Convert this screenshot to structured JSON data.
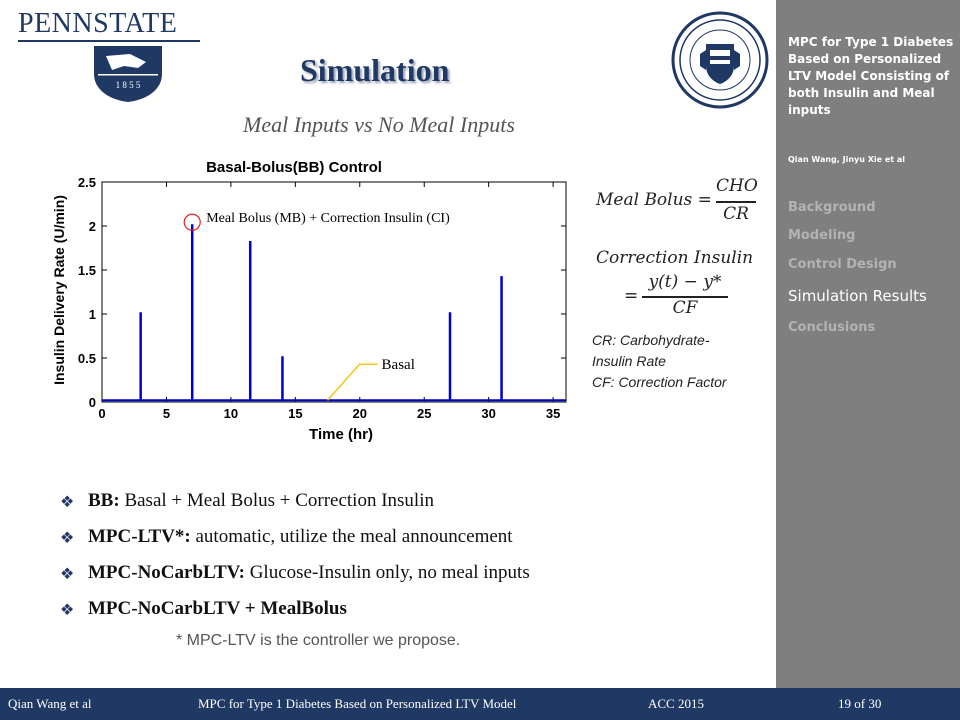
{
  "header": {
    "logo_text": "PENNSTATE",
    "logo_years": "1 8 5 5",
    "title": "Simulation",
    "subtitle": "Meal Inputs vs No Meal Inputs"
  },
  "chart_data": {
    "type": "line",
    "title": "Basal-Bolus(BB) Control",
    "xlabel": "Time (hr)",
    "ylabel": "Insulin Delivery Rate (U/min)",
    "xlim": [
      0,
      36
    ],
    "ylim": [
      0,
      2.5
    ],
    "x_ticks": [
      "0",
      "5",
      "10",
      "15",
      "20",
      "25",
      "30",
      "35"
    ],
    "y_ticks": [
      "0",
      "0.5",
      "1",
      "1.5",
      "2",
      "2.5"
    ],
    "basal_rate": 0.02,
    "spikes": [
      {
        "x": 3,
        "y": 1.02
      },
      {
        "x": 7,
        "y": 2.02
      },
      {
        "x": 11.5,
        "y": 1.83
      },
      {
        "x": 14,
        "y": 0.52
      },
      {
        "x": 27,
        "y": 1.02
      },
      {
        "x": 31,
        "y": 1.43
      }
    ],
    "series_color": "#0000cc",
    "annotations": {
      "bolus_label": "Meal Bolus (MB) + Correction Insulin (CI)",
      "basal_label": "Basal"
    }
  },
  "equations": {
    "meal_bolus_lhs": "Meal Bolus =",
    "meal_bolus_num": "CHO",
    "meal_bolus_den": "CR",
    "correction_title": "Correction Insulin",
    "correction_eq": "=",
    "correction_num": "y(t) − y*",
    "correction_den": "CF"
  },
  "definitions": {
    "cr_line1": "CR: Carbohydrate-",
    "cr_line2": "Insulin Rate",
    "cf_line": "CF: Correction Factor"
  },
  "bullets": [
    {
      "bold": "BB:",
      "text": " Basal + Meal Bolus + Correction Insulin"
    },
    {
      "bold": "MPC-LTV*:",
      "text": " automatic, utilize the meal announcement"
    },
    {
      "bold": "MPC-NoCarbLTV:",
      "text": " Glucose-Insulin only, no meal inputs"
    },
    {
      "bold": "MPC-NoCarbLTV + MealBolus",
      "text": ""
    }
  ],
  "footnote": "* MPC-LTV is the controller we propose.",
  "sidebar": {
    "title": "MPC for Type 1 Diabetes Based on Personalized LTV Model Consisting of both Insulin and Meal inputs",
    "authors": "Qian Wang, Jinyu Xie et al",
    "items": [
      {
        "label": "Background"
      },
      {
        "label": "Modeling"
      },
      {
        "label": "Control Design"
      },
      {
        "label": "Simulation Results"
      },
      {
        "label": "Conclusions"
      }
    ]
  },
  "footer": {
    "author": "Qian Wang et al",
    "talk_title": "MPC for Type 1 Diabetes Based on Personalized LTV Model",
    "venue": "ACC 2015",
    "page": "19 of 30"
  },
  "colors": {
    "brand_navy": "#1f3864",
    "sidebar_gray": "#7f7f7f",
    "annotation_red": "#e02020",
    "annotation_yellow": "#f5c518"
  }
}
